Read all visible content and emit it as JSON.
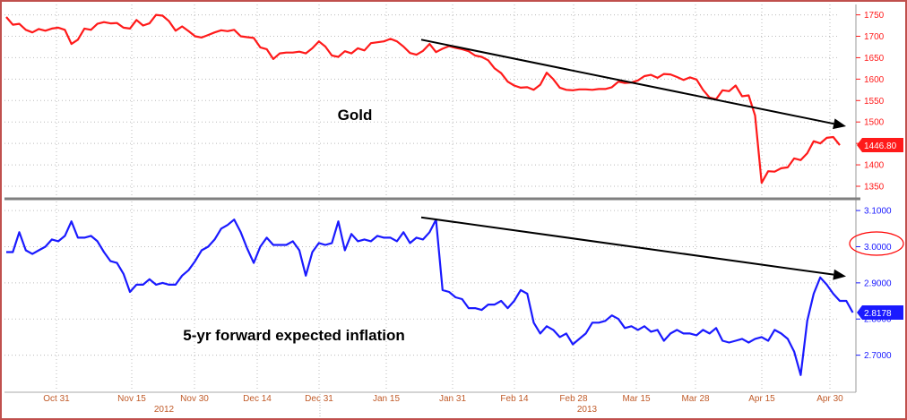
{
  "colors": {
    "gold": "#ff1a1a",
    "inflation": "#1a1aff",
    "divider": "#7f7f7f",
    "frame": "#c0504d",
    "grid": "#bbbbbb"
  },
  "chart_data": [
    {
      "type": "line",
      "annotation": "Gold",
      "last_value_label": "1446.80",
      "y_ticks": [
        "1750",
        "1700",
        "1650",
        "1600",
        "1550",
        "1500",
        "1450",
        "1400",
        "1350"
      ],
      "ylim": [
        1327,
        1770
      ],
      "trend_arrow": {
        "from": [
          "Jan 21",
          1692
        ],
        "to": [
          "May 2",
          1490
        ]
      },
      "series": [
        {
          "values": [
            1745,
            1727,
            1729,
            1715,
            1709,
            1717,
            1713,
            1718,
            1720,
            1715,
            1682,
            1692,
            1718,
            1715,
            1729,
            1733,
            1730,
            1731,
            1720,
            1718,
            1738,
            1725,
            1730,
            1750,
            1748,
            1735,
            1713,
            1723,
            1712,
            1700,
            1697,
            1703,
            1709,
            1714,
            1712,
            1715,
            1700,
            1698,
            1696,
            1674,
            1670,
            1647,
            1660,
            1662,
            1662,
            1664,
            1660,
            1672,
            1688,
            1676,
            1655,
            1652,
            1665,
            1660,
            1672,
            1667,
            1684,
            1686,
            1688,
            1694,
            1688,
            1676,
            1661,
            1657,
            1666,
            1682,
            1663,
            1671,
            1677,
            1673,
            1670,
            1665,
            1655,
            1652,
            1644,
            1625,
            1614,
            1594,
            1585,
            1580,
            1581,
            1575,
            1587,
            1615,
            1600,
            1580,
            1575,
            1574,
            1576,
            1576,
            1575,
            1577,
            1577,
            1581,
            1594,
            1591,
            1592,
            1597,
            1607,
            1610,
            1603,
            1612,
            1611,
            1605,
            1598,
            1604,
            1599,
            1575,
            1557,
            1553,
            1574,
            1572,
            1585,
            1560,
            1562,
            1515,
            1358,
            1385,
            1384,
            1392,
            1394,
            1415,
            1411,
            1427,
            1455,
            1450,
            1463,
            1465,
            1446
          ]
        }
      ]
    },
    {
      "type": "line",
      "annotation": "5-yr forward expected inflation",
      "last_value_label": "2.8178",
      "y_ticks": [
        "3.1000",
        "3.0000",
        "2.9000",
        "2.8000",
        "2.7000"
      ],
      "ylim": [
        2.6,
        3.125
      ],
      "trend_arrow": {
        "from": [
          "Jan 21",
          3.081
        ],
        "to": [
          "May 2",
          2.918
        ]
      },
      "series": [
        {
          "values": [
            2.985,
            2.985,
            3.04,
            2.99,
            2.98,
            2.99,
            3.0,
            3.02,
            3.015,
            3.03,
            3.07,
            3.025,
            3.025,
            3.03,
            3.015,
            2.985,
            2.96,
            2.955,
            2.925,
            2.875,
            2.895,
            2.895,
            2.91,
            2.895,
            2.9,
            2.895,
            2.895,
            2.92,
            2.935,
            2.96,
            2.99,
            3.0,
            3.02,
            3.05,
            3.06,
            3.075,
            3.04,
            2.995,
            2.955,
            3.0,
            3.025,
            3.005,
            3.005,
            3.005,
            3.015,
            2.99,
            2.92,
            2.985,
            3.01,
            3.005,
            3.01,
            3.07,
            2.99,
            3.035,
            3.015,
            3.02,
            3.015,
            3.03,
            3.025,
            3.025,
            3.015,
            3.04,
            3.01,
            3.025,
            3.02,
            3.04,
            3.075,
            2.88,
            2.875,
            2.86,
            2.855,
            2.83,
            2.83,
            2.825,
            2.84,
            2.84,
            2.85,
            2.83,
            2.85,
            2.88,
            2.87,
            2.79,
            2.76,
            2.78,
            2.77,
            2.75,
            2.76,
            2.73,
            2.745,
            2.76,
            2.79,
            2.79,
            2.795,
            2.81,
            2.8,
            2.775,
            2.78,
            2.77,
            2.78,
            2.765,
            2.77,
            2.74,
            2.76,
            2.77,
            2.76,
            2.76,
            2.755,
            2.77,
            2.76,
            2.775,
            2.74,
            2.735,
            2.74,
            2.745,
            2.735,
            2.745,
            2.75,
            2.74,
            2.77,
            2.76,
            2.745,
            2.71,
            2.645,
            2.795,
            2.87,
            2.915,
            2.895,
            2.87,
            2.85,
            2.85,
            2.818
          ]
        }
      ]
    }
  ],
  "x_axis": {
    "tick_labels": [
      "Oct 31",
      "Nov 15",
      "Nov 30",
      "Dec 14",
      "Dec 31",
      "Jan 15",
      "Jan 31",
      "Feb 14",
      "Feb 28",
      "Mar 15",
      "Mar 28",
      "Apr 15",
      "Apr 30"
    ],
    "year_labels": [
      "2012",
      "2013"
    ]
  }
}
